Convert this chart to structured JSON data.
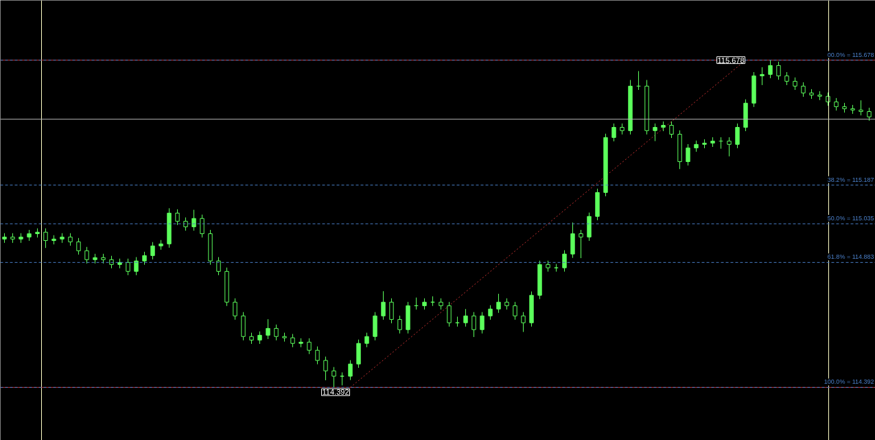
{
  "chart_data": {
    "type": "candlestick",
    "color": "#5cff5c",
    "categories": [
      null,
      null,
      null,
      null,
      null,
      null,
      null,
      null,
      null,
      null,
      null,
      null,
      null,
      null,
      null,
      null,
      null,
      null,
      null,
      null,
      null,
      null,
      null,
      null,
      null,
      null,
      null,
      null,
      null,
      null,
      null,
      null,
      null,
      null,
      null,
      null,
      null,
      null,
      null,
      null,
      null,
      null,
      null,
      null,
      null,
      null,
      null,
      null,
      null,
      null,
      null,
      null,
      null,
      null,
      null,
      null,
      null,
      null,
      null,
      null,
      null,
      null,
      null,
      null,
      null,
      null,
      null,
      null,
      null,
      null,
      null,
      null,
      null,
      null,
      null,
      null,
      null,
      null,
      null,
      null,
      null,
      null,
      null,
      null,
      null,
      null,
      null,
      null,
      null,
      null,
      null,
      null,
      null,
      null,
      null,
      null,
      null,
      null,
      null,
      null,
      null,
      null,
      null,
      null,
      null,
      null
    ],
    "ylim": [
      114.184,
      115.913
    ],
    "tick_labels": false,
    "grid": false,
    "ohlc": [
      [
        114.975,
        114.998,
        114.96,
        114.983
      ],
      [
        114.983,
        114.998,
        114.96,
        114.975
      ],
      [
        114.975,
        114.998,
        114.96,
        114.983
      ],
      [
        114.983,
        115.011,
        114.968,
        114.996
      ],
      [
        114.996,
        115.017,
        114.981,
        115.002
      ],
      [
        115.002,
        115.017,
        114.94,
        114.969
      ],
      [
        114.969,
        114.99,
        114.954,
        114.975
      ],
      [
        114.975,
        114.998,
        114.96,
        114.983
      ],
      [
        114.983,
        114.998,
        114.949,
        114.964
      ],
      [
        114.964,
        114.979,
        114.914,
        114.929
      ],
      [
        114.929,
        114.944,
        114.879,
        114.894
      ],
      [
        114.894,
        114.917,
        114.879,
        114.902
      ],
      [
        114.902,
        114.917,
        114.879,
        114.894
      ],
      [
        114.894,
        114.909,
        114.86,
        114.875
      ],
      [
        114.875,
        114.898,
        114.86,
        114.883
      ],
      [
        114.883,
        114.898,
        114.833,
        114.848
      ],
      [
        114.848,
        114.904,
        114.833,
        114.889
      ],
      [
        114.889,
        114.925,
        114.874,
        114.91
      ],
      [
        114.91,
        114.963,
        114.895,
        114.948
      ],
      [
        114.948,
        114.971,
        114.933,
        114.956
      ],
      [
        114.956,
        115.096,
        114.941,
        115.077
      ],
      [
        115.077,
        115.092,
        115.03,
        115.045
      ],
      [
        115.045,
        115.06,
        115.008,
        115.023
      ],
      [
        115.023,
        115.09,
        115.008,
        115.056
      ],
      [
        115.056,
        115.071,
        114.981,
        114.996
      ],
      [
        114.996,
        115.011,
        114.874,
        114.889
      ],
      [
        114.889,
        114.904,
        114.833,
        114.848
      ],
      [
        114.848,
        114.863,
        114.712,
        114.727
      ],
      [
        114.727,
        114.742,
        114.658,
        114.673
      ],
      [
        114.673,
        114.688,
        114.577,
        114.592
      ],
      [
        114.592,
        114.607,
        114.563,
        114.578
      ],
      [
        114.578,
        114.612,
        114.563,
        114.597
      ],
      [
        114.597,
        114.66,
        114.582,
        114.624
      ],
      [
        114.624,
        114.639,
        114.577,
        114.592
      ],
      [
        114.592,
        114.607,
        114.572,
        114.587
      ],
      [
        114.587,
        114.602,
        114.55,
        114.565
      ],
      [
        114.565,
        114.585,
        114.55,
        114.57
      ],
      [
        114.57,
        114.585,
        114.523,
        114.538
      ],
      [
        114.538,
        114.553,
        114.483,
        114.498
      ],
      [
        114.498,
        114.513,
        114.42,
        114.457
      ],
      [
        114.457,
        114.472,
        114.392,
        114.436
      ],
      [
        114.436,
        114.451,
        114.4,
        114.436
      ],
      [
        114.436,
        114.499,
        114.421,
        114.484
      ],
      [
        114.484,
        114.58,
        114.469,
        114.565
      ],
      [
        114.565,
        114.607,
        114.55,
        114.592
      ],
      [
        114.592,
        114.688,
        114.577,
        114.673
      ],
      [
        114.673,
        114.77,
        114.658,
        114.727
      ],
      [
        114.727,
        114.742,
        114.644,
        114.659
      ],
      [
        114.659,
        114.674,
        114.604,
        114.619
      ],
      [
        114.619,
        114.728,
        114.604,
        114.713
      ],
      [
        114.713,
        114.745,
        114.698,
        114.713
      ],
      [
        114.713,
        114.742,
        114.698,
        114.727
      ],
      [
        114.727,
        114.75,
        114.712,
        114.727
      ],
      [
        114.727,
        114.742,
        114.698,
        114.713
      ],
      [
        114.713,
        114.728,
        114.631,
        114.646
      ],
      [
        114.646,
        114.67,
        114.631,
        114.646
      ],
      [
        114.646,
        114.7,
        114.631,
        114.673
      ],
      [
        114.673,
        114.688,
        114.59,
        114.619
      ],
      [
        114.619,
        114.688,
        114.604,
        114.673
      ],
      [
        114.673,
        114.715,
        114.658,
        114.7
      ],
      [
        114.7,
        114.76,
        114.685,
        114.727
      ],
      [
        114.727,
        114.742,
        114.698,
        114.713
      ],
      [
        114.713,
        114.728,
        114.658,
        114.673
      ],
      [
        114.673,
        114.688,
        114.61,
        114.646
      ],
      [
        114.646,
        114.769,
        114.631,
        114.754
      ],
      [
        114.754,
        114.89,
        114.739,
        114.875
      ],
      [
        114.875,
        114.89,
        114.847,
        114.862
      ],
      [
        114.862,
        114.877,
        114.847,
        114.862
      ],
      [
        114.862,
        114.931,
        114.847,
        114.916
      ],
      [
        114.916,
        115.04,
        114.901,
        114.996
      ],
      [
        114.996,
        115.011,
        114.9,
        114.983
      ],
      [
        114.983,
        115.079,
        114.968,
        115.064
      ],
      [
        115.064,
        115.173,
        115.049,
        115.158
      ],
      [
        115.158,
        115.389,
        115.143,
        115.374
      ],
      [
        115.374,
        115.429,
        115.359,
        115.414
      ],
      [
        115.414,
        115.429,
        115.386,
        115.401
      ],
      [
        115.401,
        115.6,
        115.386,
        115.576
      ],
      [
        115.576,
        115.635,
        115.561,
        115.576
      ],
      [
        115.576,
        115.6,
        115.386,
        115.401
      ],
      [
        115.401,
        115.429,
        115.36,
        115.414
      ],
      [
        115.414,
        115.437,
        115.399,
        115.422
      ],
      [
        115.422,
        115.437,
        115.372,
        115.387
      ],
      [
        115.387,
        115.402,
        115.25,
        115.279
      ],
      [
        115.279,
        115.348,
        115.264,
        115.333
      ],
      [
        115.333,
        115.362,
        115.318,
        115.347
      ],
      [
        115.347,
        115.367,
        115.332,
        115.352
      ],
      [
        115.352,
        115.375,
        115.337,
        115.36
      ],
      [
        115.36,
        115.375,
        115.33,
        115.36
      ],
      [
        115.36,
        115.375,
        115.3,
        115.347
      ],
      [
        115.347,
        115.429,
        115.332,
        115.414
      ],
      [
        115.414,
        115.524,
        115.399,
        115.509
      ],
      [
        115.509,
        115.631,
        115.494,
        115.616
      ],
      [
        115.616,
        115.65,
        115.58,
        115.622
      ],
      [
        115.622,
        115.678,
        115.607,
        115.657
      ],
      [
        115.657,
        115.672,
        115.601,
        115.616
      ],
      [
        115.616,
        115.631,
        115.58,
        115.595
      ],
      [
        115.595,
        115.61,
        115.561,
        115.576
      ],
      [
        115.576,
        115.591,
        115.534,
        115.549
      ],
      [
        115.549,
        115.564,
        115.526,
        115.541
      ],
      [
        115.541,
        115.556,
        115.521,
        115.536
      ],
      [
        115.536,
        115.551,
        115.499,
        115.514
      ],
      [
        115.514,
        115.529,
        115.48,
        115.495
      ],
      [
        115.495,
        115.51,
        115.472,
        115.487
      ],
      [
        115.487,
        115.502,
        115.467,
        115.482
      ],
      [
        115.482,
        115.52,
        115.461,
        115.476
      ],
      [
        115.476,
        115.491,
        115.44,
        115.455
      ]
    ],
    "series": [
      {
        "type": "line",
        "color": "#c83232",
        "line_style": "dotted",
        "values": [
          null,
          null,
          null,
          null,
          null,
          null,
          null,
          null,
          null,
          null,
          null,
          null,
          null,
          null,
          null,
          null,
          null,
          null,
          null,
          null,
          null,
          null,
          null,
          null,
          null,
          null,
          null,
          null,
          null,
          null,
          null,
          null,
          null,
          null,
          null,
          null,
          null,
          null,
          null,
          null,
          null,
          null,
          114.392,
          null,
          null,
          null,
          null,
          null,
          null,
          null,
          null,
          null,
          null,
          null,
          null,
          null,
          null,
          null,
          null,
          null,
          null,
          null,
          null,
          null,
          null,
          null,
          null,
          null,
          null,
          null,
          null,
          null,
          null,
          null,
          null,
          null,
          null,
          null,
          null,
          null,
          null,
          null,
          null,
          null,
          null,
          null,
          null,
          null,
          null,
          null,
          115.678,
          null,
          null,
          null,
          null,
          null,
          null,
          null,
          null,
          null,
          null,
          null,
          null,
          null,
          null,
          null
        ]
      }
    ],
    "ref_lines": [
      {
        "axis": "y",
        "value": 115.678,
        "color": "#c83232",
        "line_style": "solid"
      },
      {
        "axis": "y",
        "value": 114.392,
        "color": "#c83232",
        "line_style": "solid"
      },
      {
        "axis": "y",
        "value": 115.678,
        "label": "00.0% = 115.678",
        "color": "#4a7fc8",
        "line_style": "dashed"
      },
      {
        "axis": "y",
        "value": 115.187,
        "label": "38.2% = 115.187",
        "color": "#4a7fc8",
        "line_style": "dashed"
      },
      {
        "axis": "y",
        "value": 115.035,
        "label": "50.0% = 115.035",
        "color": "#4a7fc8",
        "line_style": "dashed"
      },
      {
        "axis": "y",
        "value": 114.883,
        "label": "61.8% = 114.883",
        "color": "#4a7fc8",
        "line_style": "dashed"
      },
      {
        "axis": "y",
        "value": 114.392,
        "label": "100.0% = 114.392",
        "color": "#4a7fc8",
        "line_style": "dashed"
      },
      {
        "axis": "y",
        "value": 115.446,
        "color": "#b4b4b4",
        "line_style": "solid"
      }
    ],
    "annotations": [
      {
        "text": "115.678",
        "y": 115.678
      },
      {
        "text": "114.392",
        "y": 114.392
      }
    ]
  }
}
